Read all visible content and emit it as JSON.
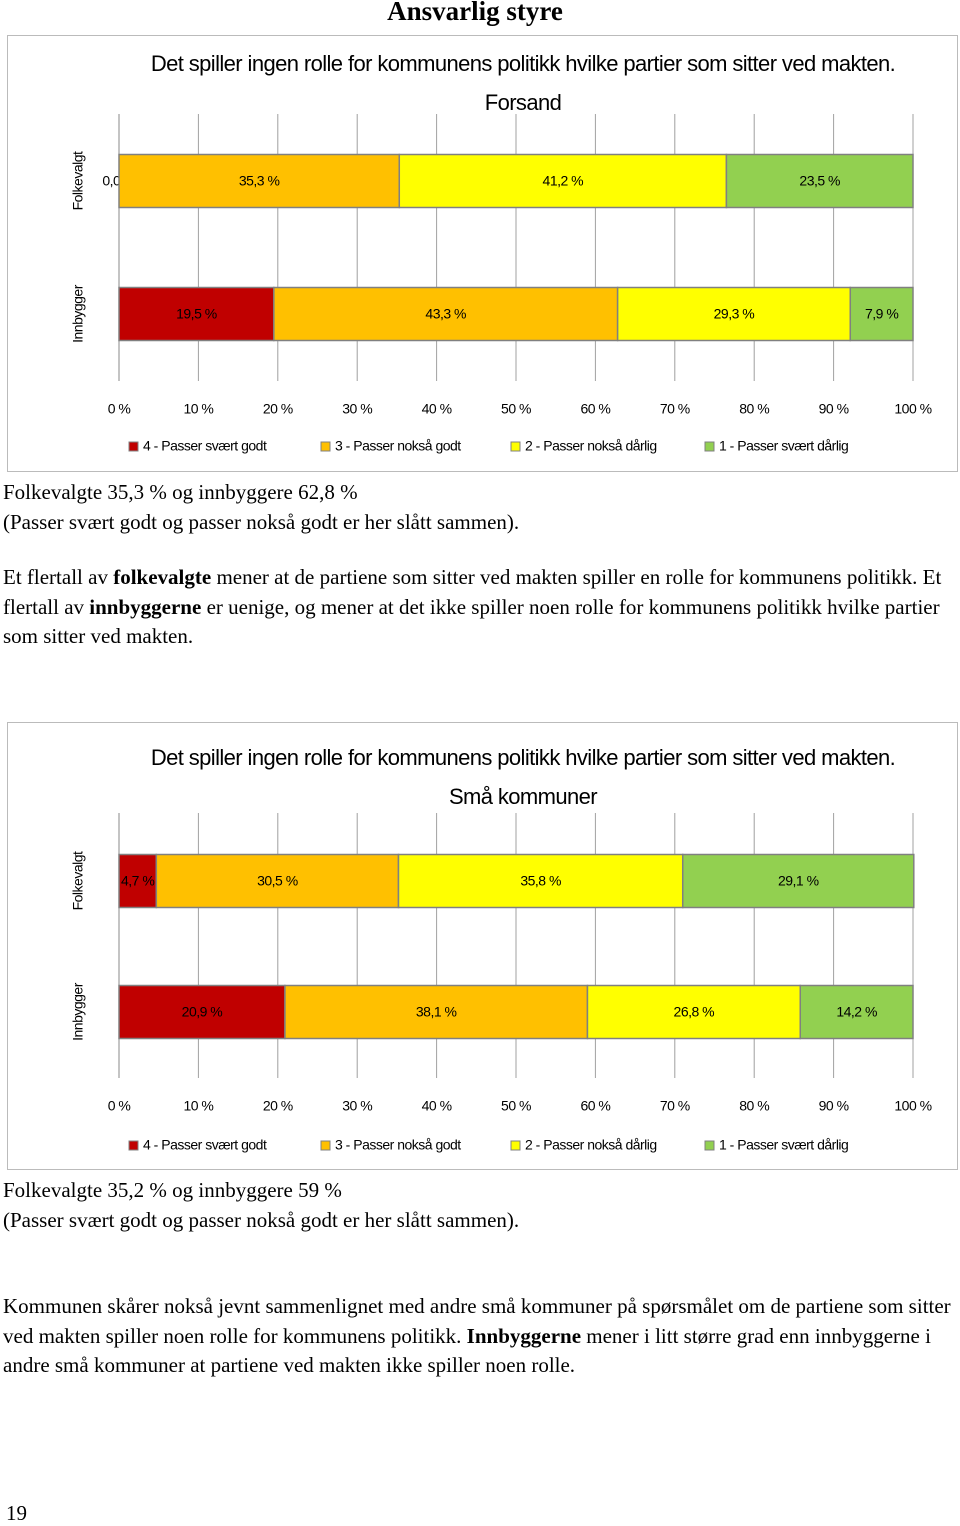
{
  "title": "Ansvarlig styre",
  "chart_data": [
    {
      "type": "bar",
      "title": "Det spiller ingen rolle for kommunens politikk hvilke partier som sitter ved makten. Forsand",
      "categories": [
        "Folkevalgt",
        "Innbygger"
      ],
      "series": [
        {
          "name": "4 - Passer svært godt",
          "color": "#c00000",
          "values": [
            0.0,
            19.5
          ],
          "value_labels": [
            "0,0 %",
            "19,5 %"
          ]
        },
        {
          "name": "3 - Passer nokså godt",
          "color": "#ffc000",
          "values": [
            35.3,
            43.3
          ],
          "value_labels": [
            "35,3 %",
            "43,3 %"
          ]
        },
        {
          "name": "2 - Passer nokså dårlig",
          "color": "#ffff00",
          "values": [
            41.2,
            29.3
          ],
          "value_labels": [
            "41,2 %",
            "29,3 %"
          ]
        },
        {
          "name": "1 - Passer svært dårlig",
          "color": "#92d050",
          "values": [
            23.5,
            7.9
          ],
          "value_labels": [
            "23,5 %",
            "7,9 %"
          ]
        }
      ],
      "xlim": [
        0,
        100
      ],
      "xticks": [
        {
          "value": 0,
          "label": "0 %"
        },
        {
          "value": 10,
          "label": "10 %"
        },
        {
          "value": 20,
          "label": "20 %"
        },
        {
          "value": 30,
          "label": "30 %"
        },
        {
          "value": 40,
          "label": "40 %"
        },
        {
          "value": 50,
          "label": "50 %"
        },
        {
          "value": 60,
          "label": "60 %"
        },
        {
          "value": 70,
          "label": "70 %"
        },
        {
          "value": 80,
          "label": "80 %"
        },
        {
          "value": 90,
          "label": "90 %"
        },
        {
          "value": 100,
          "label": "100 %"
        }
      ],
      "grid": true,
      "legend": "bottom"
    },
    {
      "type": "bar",
      "title": "Det spiller ingen rolle for kommunens politikk hvilke partier som sitter ved makten. Små kommuner",
      "categories": [
        "Folkevalgt",
        "Innbygger"
      ],
      "series": [
        {
          "name": "4 - Passer svært godt",
          "color": "#c00000",
          "values": [
            4.7,
            20.9
          ],
          "value_labels": [
            "4,7 %",
            "20,9 %"
          ]
        },
        {
          "name": "3 - Passer nokså godt",
          "color": "#ffc000",
          "values": [
            30.5,
            38.1
          ],
          "value_labels": [
            "30,5 %",
            "38,1 %"
          ]
        },
        {
          "name": "2 - Passer nokså dårlig",
          "color": "#ffff00",
          "values": [
            35.8,
            26.8
          ],
          "value_labels": [
            "35,8 %",
            "26,8 %"
          ]
        },
        {
          "name": "1 - Passer svært dårlig",
          "color": "#92d050",
          "values": [
            29.1,
            14.2
          ],
          "value_labels": [
            "29,1 %",
            "14,2 %"
          ]
        }
      ],
      "xlim": [
        0,
        100
      ],
      "xticks": [
        {
          "value": 0,
          "label": "0 %"
        },
        {
          "value": 10,
          "label": "10 %"
        },
        {
          "value": 20,
          "label": "20 %"
        },
        {
          "value": 30,
          "label": "30 %"
        },
        {
          "value": 40,
          "label": "40 %"
        },
        {
          "value": 50,
          "label": "50 %"
        },
        {
          "value": 60,
          "label": "60 %"
        },
        {
          "value": 70,
          "label": "70 %"
        },
        {
          "value": 80,
          "label": "80 %"
        },
        {
          "value": 90,
          "label": "90 %"
        },
        {
          "value": 100,
          "label": "100 %"
        }
      ],
      "grid": true,
      "legend": "bottom"
    }
  ],
  "notes": [
    [
      "Folkevalgte 35,3 % og innbyggere 62,8 %",
      "(Passer svært godt og passer nokså godt er her slått sammen)."
    ],
    [
      "Folkevalgte 35,2 % og innbyggere 59 %",
      "(Passer svært godt og passer nokså godt er her slått sammen)."
    ]
  ],
  "paragraphs": [
    [
      {
        "text": "Et flertall av "
      },
      {
        "text": "folkevalgte",
        "bold": true
      },
      {
        "text": " mener at de partiene som sitter ved makten spiller en rolle for kommunens politikk. Et flertall av "
      },
      {
        "text": "innbyggerne",
        "bold": true
      },
      {
        "text": " er uenige, og mener at det ikke spiller noen rolle for kommunens politikk hvilke partier som sitter ved makten."
      }
    ],
    [
      {
        "text": "Kommunen skårer nokså jevnt sammenlignet med andre små kommuner på spørsmålet om de partiene som sitter ved makten spiller noen rolle for kommunens politikk. "
      },
      {
        "text": "Innbyggerne",
        "bold": true
      },
      {
        "text": " mener i litt større grad enn innbyggerne i andre små kommuner at partiene ved makten ikke spiller noen rolle."
      }
    ]
  ],
  "page_number": "19"
}
